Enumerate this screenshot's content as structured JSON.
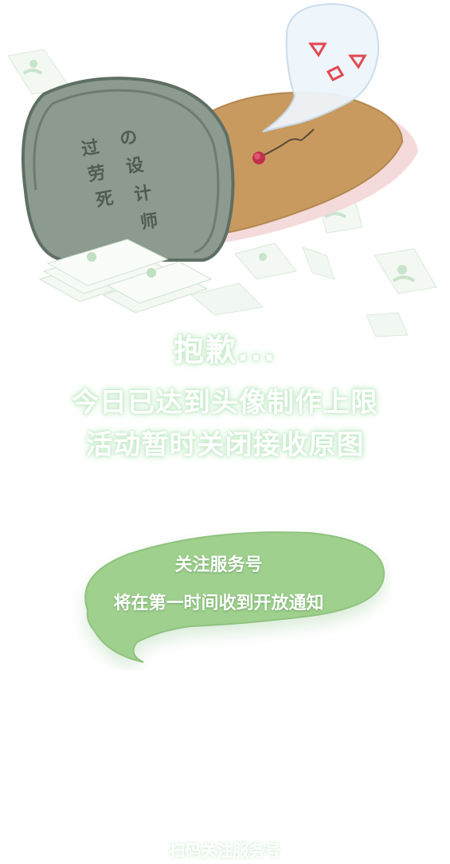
{
  "illustration": {
    "tombstone_text": [
      "过",
      "劳",
      "死",
      "の",
      "设",
      "计",
      "师"
    ]
  },
  "message": {
    "sorry": "抱歉...",
    "line1": "今日已达到头像制作上限",
    "line2": "活动暂时关闭接收原图"
  },
  "bubble": {
    "line1": "关注服务号",
    "line2": "将在第一时间收到开放通知"
  },
  "footer": {
    "scan_label": "扫码关注服务号"
  }
}
